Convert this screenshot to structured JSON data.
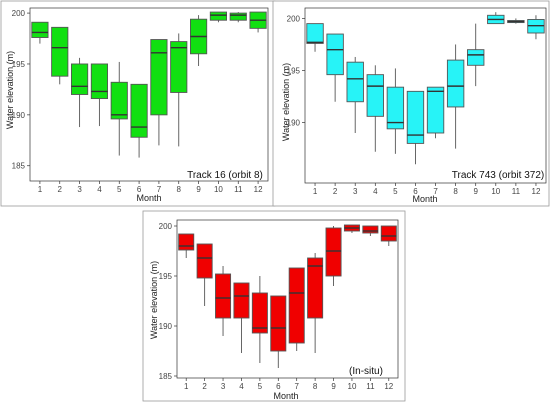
{
  "chart_data": [
    {
      "type": "box",
      "annotation": "Track 16 (orbit 8)",
      "xlabel": "Month",
      "ylabel": "Water elevation (m)",
      "ylim": [
        183.5,
        200.5
      ],
      "yticks": [
        185,
        190,
        195,
        200
      ],
      "categories": [
        "1",
        "2",
        "3",
        "4",
        "5",
        "6",
        "7",
        "8",
        "9",
        "10",
        "11",
        "12"
      ],
      "color": "#11e011",
      "boxes": [
        {
          "min": 197.0,
          "q1": 197.6,
          "median": 198.1,
          "q3": 199.1,
          "max": 199.1
        },
        {
          "min": 193.0,
          "q1": 193.8,
          "median": 196.6,
          "q3": 198.6,
          "max": 198.6
        },
        {
          "min": 188.8,
          "q1": 192.0,
          "median": 192.8,
          "q3": 195.0,
          "max": 195.6
        },
        {
          "min": 188.9,
          "q1": 191.6,
          "median": 192.3,
          "q3": 195.0,
          "max": 195.0
        },
        {
          "min": 186.0,
          "q1": 189.6,
          "median": 190.0,
          "q3": 193.2,
          "max": 195.2
        },
        {
          "min": 185.8,
          "q1": 187.8,
          "median": 188.8,
          "q3": 193.0,
          "max": 193.0
        },
        {
          "min": 187.0,
          "q1": 190.0,
          "median": 196.1,
          "q3": 197.4,
          "max": 197.4
        },
        {
          "min": 186.9,
          "q1": 192.2,
          "median": 196.6,
          "q3": 197.2,
          "max": 198.0
        },
        {
          "min": 194.8,
          "q1": 196.0,
          "median": 197.7,
          "q3": 199.4,
          "max": 199.8
        },
        {
          "min": 199.1,
          "q1": 199.3,
          "median": 199.8,
          "q3": 200.1,
          "max": 200.1
        },
        {
          "min": 199.1,
          "q1": 199.3,
          "median": 199.8,
          "q3": 200.0,
          "max": 200.1
        },
        {
          "min": 198.1,
          "q1": 198.5,
          "median": 199.3,
          "q3": 200.1,
          "max": 200.1
        }
      ]
    },
    {
      "type": "box",
      "annotation": "Track 743 (orbit 372)",
      "xlabel": "Month",
      "ylabel": "Water elevation (m)",
      "ylim": [
        184.2,
        201.0
      ],
      "yticks": [
        190,
        195,
        200
      ],
      "categories": [
        "1",
        "2",
        "3",
        "4",
        "5",
        "6",
        "7",
        "8",
        "9",
        "10",
        "11",
        "12"
      ],
      "color": "#27f3f7",
      "boxes": [
        {
          "min": 196.8,
          "q1": 197.6,
          "median": 197.7,
          "q3": 199.5,
          "max": 199.5
        },
        {
          "min": 192.0,
          "q1": 194.6,
          "median": 197.0,
          "q3": 198.5,
          "max": 198.5
        },
        {
          "min": 189.0,
          "q1": 192.0,
          "median": 194.2,
          "q3": 195.8,
          "max": 196.3
        },
        {
          "min": 187.2,
          "q1": 190.6,
          "median": 193.5,
          "q3": 194.6,
          "max": 195.5
        },
        {
          "min": 187.0,
          "q1": 189.4,
          "median": 190.0,
          "q3": 193.4,
          "max": 195.2
        },
        {
          "min": 186.0,
          "q1": 188.0,
          "median": 188.8,
          "q3": 193.0,
          "max": 193.0
        },
        {
          "min": 188.5,
          "q1": 189.0,
          "median": 193.0,
          "q3": 193.4,
          "max": 193.4
        },
        {
          "min": 187.5,
          "q1": 191.5,
          "median": 193.5,
          "q3": 196.0,
          "max": 197.5
        },
        {
          "min": 193.5,
          "q1": 195.5,
          "median": 196.5,
          "q3": 197.0,
          "max": 199.5
        },
        {
          "min": 199.5,
          "q1": 199.5,
          "median": 199.9,
          "q3": 200.3,
          "max": 200.6
        },
        {
          "min": 199.5,
          "q1": 199.6,
          "median": 199.7,
          "q3": 199.8,
          "max": 200.0
        },
        {
          "min": 198.0,
          "q1": 198.6,
          "median": 199.3,
          "q3": 199.9,
          "max": 200.3
        }
      ]
    },
    {
      "type": "box",
      "annotation": "(In-situ)",
      "xlabel": "Month",
      "ylabel": "Water elevation (m)",
      "ylim": [
        184.8,
        200.6
      ],
      "yticks": [
        185,
        190,
        195,
        200
      ],
      "categories": [
        "1",
        "2",
        "3",
        "4",
        "5",
        "6",
        "7",
        "8",
        "9",
        "10",
        "11",
        "12"
      ],
      "color": "#f00000",
      "boxes": [
        {
          "min": 196.8,
          "q1": 197.6,
          "median": 198.0,
          "q3": 199.2,
          "max": 199.2
        },
        {
          "min": 192.0,
          "q1": 194.8,
          "median": 196.8,
          "q3": 198.2,
          "max": 198.2
        },
        {
          "min": 189.0,
          "q1": 190.8,
          "median": 192.8,
          "q3": 195.2,
          "max": 196.0
        },
        {
          "min": 187.3,
          "q1": 190.8,
          "median": 193.0,
          "q3": 194.3,
          "max": 194.3
        },
        {
          "min": 186.3,
          "q1": 189.3,
          "median": 189.8,
          "q3": 193.3,
          "max": 195.0
        },
        {
          "min": 185.8,
          "q1": 187.5,
          "median": 189.8,
          "q3": 193.0,
          "max": 193.0
        },
        {
          "min": 187.5,
          "q1": 188.3,
          "median": 193.3,
          "q3": 195.8,
          "max": 195.8
        },
        {
          "min": 187.3,
          "q1": 190.8,
          "median": 196.0,
          "q3": 196.8,
          "max": 197.3
        },
        {
          "min": 194.0,
          "q1": 195.0,
          "median": 197.5,
          "q3": 199.8,
          "max": 200.0
        },
        {
          "min": 199.3,
          "q1": 199.5,
          "median": 199.8,
          "q3": 200.1,
          "max": 200.1
        },
        {
          "min": 199.0,
          "q1": 199.3,
          "median": 199.5,
          "q3": 200.0,
          "max": 200.0
        },
        {
          "min": 198.0,
          "q1": 198.5,
          "median": 199.0,
          "q3": 200.0,
          "max": 200.0
        }
      ]
    }
  ]
}
